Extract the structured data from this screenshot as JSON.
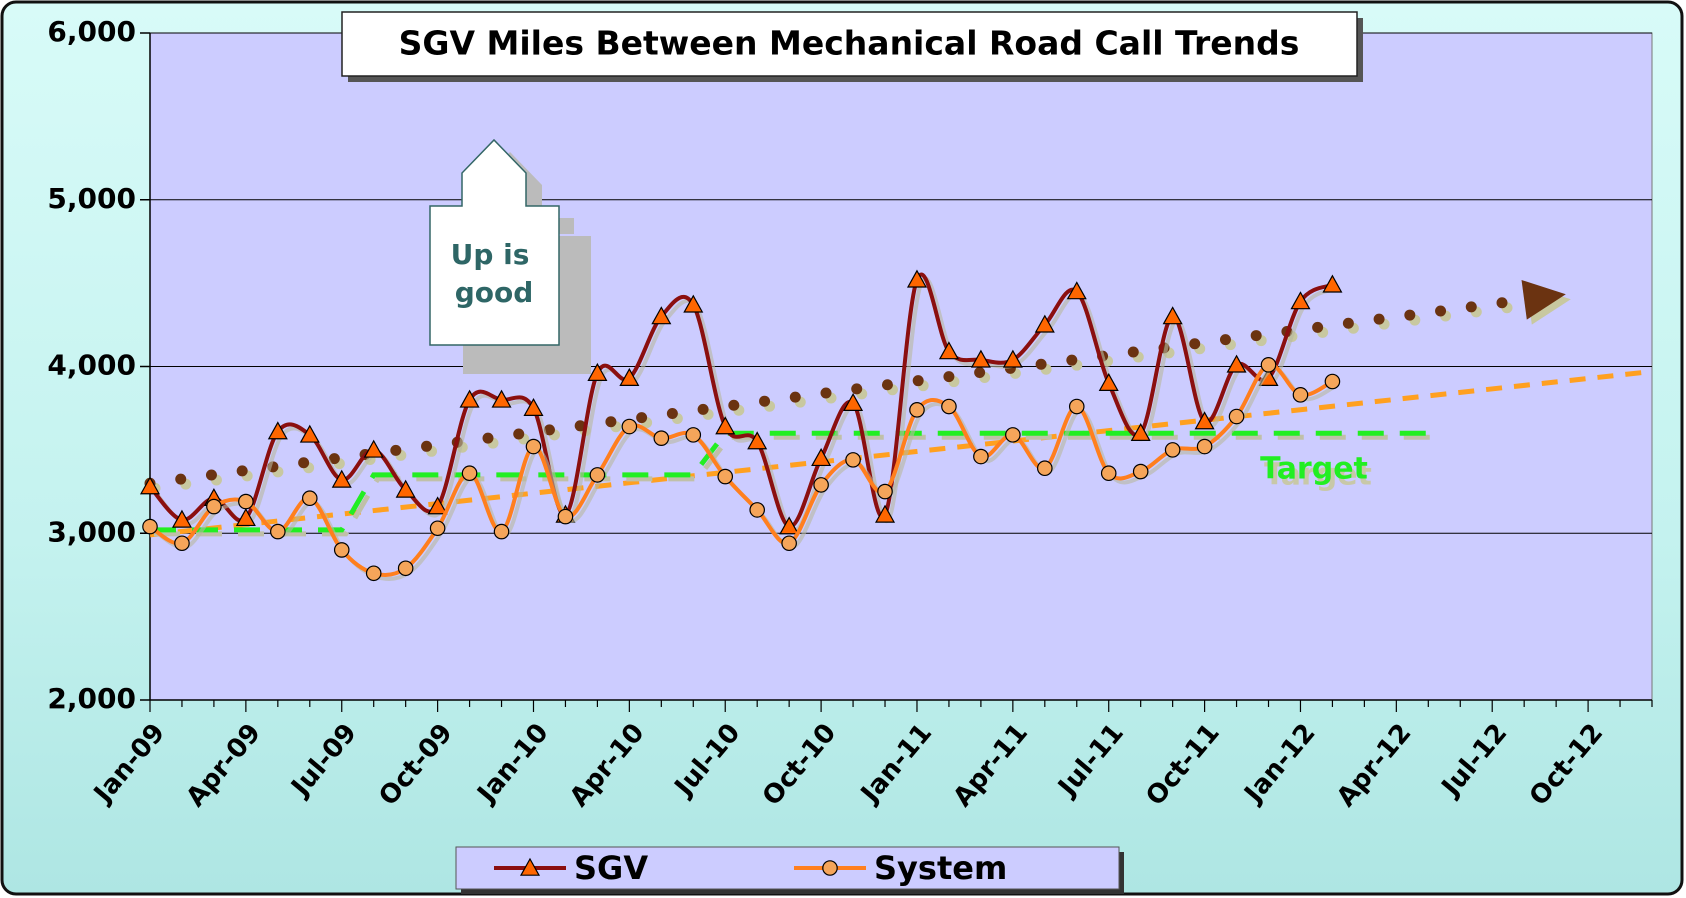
{
  "chart_data": {
    "type": "line",
    "title": "SGV Miles Between Mechanical Road Call Trends",
    "categories": [
      "Jan-09",
      null,
      null,
      "Apr-09",
      null,
      null,
      "Jul-09",
      null,
      null,
      "Oct-09",
      null,
      null,
      "Jan-10",
      null,
      null,
      "Apr-10",
      null,
      null,
      "Jul-10",
      null,
      null,
      "Oct-10",
      null,
      null,
      "Jan-11",
      null,
      null,
      "Apr-11",
      null,
      null,
      "Jul-11",
      null,
      null,
      "Oct-11",
      null,
      null,
      "Jan-12",
      null,
      null,
      "Apr-12",
      null,
      null,
      "Jul-12",
      null,
      null,
      "Oct-12",
      null,
      null
    ],
    "series": [
      {
        "name": "SGV",
        "color": "#8b0f0f",
        "marker": "triangle",
        "marker_color": "#ff6600",
        "values": [
          3280,
          3080,
          3210,
          3090,
          3610,
          3590,
          3320,
          3500,
          3260,
          3160,
          3800,
          3800,
          3750,
          3110,
          3960,
          3930,
          4300,
          4370,
          3640,
          3550,
          3040,
          3450,
          3780,
          3110,
          4520,
          4090,
          4040,
          4040,
          4250,
          4450,
          3900,
          3600,
          4300,
          3670,
          4010,
          3930,
          4390,
          4490,
          null,
          null,
          null,
          null,
          null,
          null,
          null,
          null,
          null,
          null
        ]
      },
      {
        "name": "System",
        "color": "#ff7f1e",
        "marker": "circle",
        "marker_color": "#f5a55a",
        "values": [
          3040,
          2940,
          3160,
          3190,
          3010,
          3210,
          2900,
          2760,
          2790,
          3030,
          3360,
          3010,
          3520,
          3100,
          3350,
          3640,
          3570,
          3590,
          3340,
          3140,
          2940,
          3290,
          3440,
          3250,
          3740,
          3760,
          3460,
          3590,
          3390,
          3760,
          3360,
          3370,
          3500,
          3520,
          3700,
          4010,
          3830,
          3910,
          null,
          null,
          null,
          null,
          null,
          null,
          null,
          null,
          null,
          null
        ]
      }
    ],
    "target": {
      "label": "Target",
      "color": "#22ee22",
      "values": [
        3020,
        3020,
        3020,
        3020,
        3020,
        3020,
        3020,
        3350,
        3350,
        3350,
        3350,
        3350,
        3350,
        3350,
        3350,
        3350,
        3350,
        3350,
        3600,
        3600,
        3600,
        3600,
        3600,
        3600,
        3600,
        3600,
        3600,
        3600,
        3600,
        3600,
        3600,
        3600,
        3600,
        3600,
        3600,
        3600,
        3600,
        3600,
        3600,
        3600,
        3600,
        null,
        null,
        null,
        null,
        null,
        null,
        null
      ]
    },
    "trendlines": [
      {
        "color": "#6b3311",
        "style": "dotted",
        "arrow": true,
        "points": [
          [
            0,
            3300
          ],
          [
            43,
            4400
          ]
        ]
      },
      {
        "color": "#ffa020",
        "style": "dashed",
        "arrow": false,
        "points": [
          [
            0,
            2990
          ],
          [
            47,
            3970
          ]
        ]
      }
    ],
    "annotation": {
      "lines": [
        "Up is",
        "good"
      ]
    },
    "ylim": [
      2000,
      6000
    ],
    "yticks": [
      {
        "value": 2000,
        "label": "2,000"
      },
      {
        "value": 3000,
        "label": "3,000"
      },
      {
        "value": 4000,
        "label": "4,000"
      },
      {
        "value": 5000,
        "label": "5,000"
      },
      {
        "value": 6000,
        "label": "6,000"
      }
    ],
    "grid": true,
    "plot_color": "#ccccff",
    "legend": "bottom"
  }
}
